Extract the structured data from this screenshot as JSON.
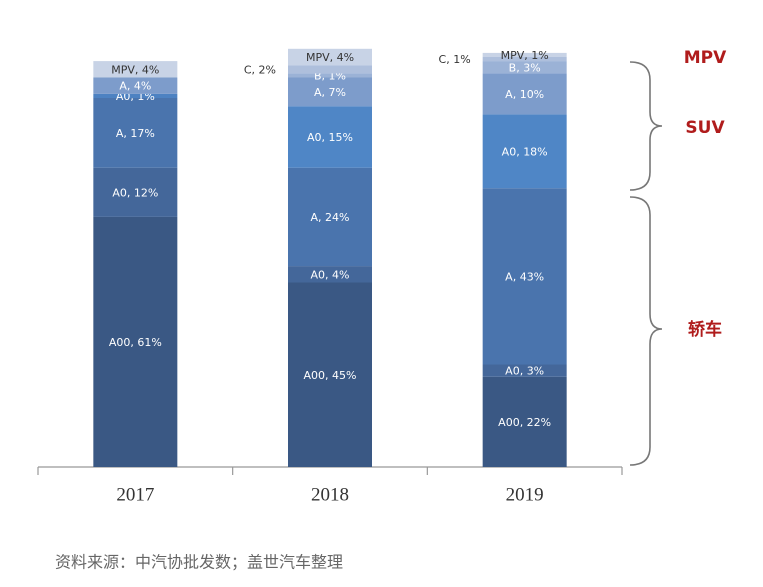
{
  "chart_data": {
    "type": "stacked-bar",
    "categories": [
      "2017",
      "2018",
      "2019"
    ],
    "stacks": [
      {
        "values": [
          61,
          12,
          17,
          1,
          4,
          4
        ],
        "value_labels": [
          "A00, 61%",
          "A0, 12%",
          "A, 17%",
          "A0, 1%",
          "A, 4%",
          "MPV, 4%"
        ],
        "colors": [
          "#3a5884",
          "#44679a",
          "#4a74ad",
          "#4d82c2",
          "#7d9ccb",
          "#c8d3e6"
        ],
        "label_position": [
          "in",
          "in",
          "in",
          "in",
          "in",
          "in"
        ]
      },
      {
        "values": [
          45,
          4,
          24,
          15,
          7,
          1,
          2,
          4
        ],
        "value_labels": [
          "A00, 45%",
          "A0, 4%",
          "A, 24%",
          "A0, 15%",
          "A, 7%",
          "B, 1%",
          "C, 2%",
          "MPV, 4%"
        ],
        "colors": [
          "#3a5884",
          "#44679a",
          "#4a74ad",
          "#4f86c6",
          "#7d9ccb",
          "#9bb2d6",
          "#aebfdc",
          "#c8d3e6"
        ],
        "label_position": [
          "in",
          "in",
          "in",
          "in",
          "in",
          "in",
          "left",
          "in"
        ]
      },
      {
        "values": [
          22,
          3,
          43,
          18,
          10,
          3,
          1,
          1
        ],
        "value_labels": [
          "A00, 22%",
          "A0, 3%",
          "A, 43%",
          "A0, 18%",
          "A, 10%",
          "B, 3%",
          "C, 1%",
          "MPV, 1%"
        ],
        "colors": [
          "#3a5884",
          "#44679a",
          "#4a74ad",
          "#4f86c6",
          "#7d9ccb",
          "#9bb2d6",
          "#aebfdc",
          "#c8d3e6"
        ],
        "label_position": [
          "in",
          "in",
          "in",
          "in",
          "in",
          "in",
          "left",
          "in"
        ]
      }
    ],
    "groups": [
      "MPV",
      "SUV",
      "轿车"
    ],
    "source": "资料来源：中汽协批发数；盖世汽车整理"
  }
}
